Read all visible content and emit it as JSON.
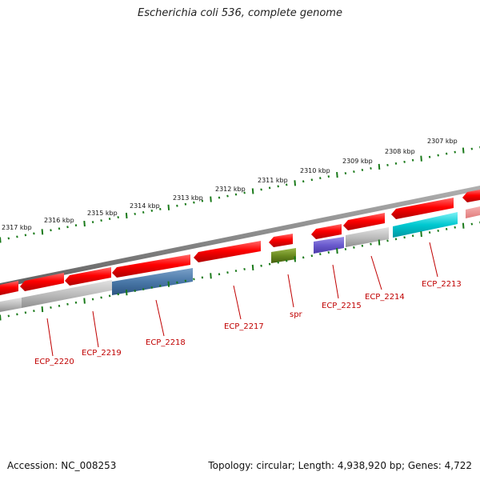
{
  "title": "Escherichia coli 536, complete genome",
  "footer": {
    "accession": "Accession: NC_008253",
    "topology": "Topology: circular; Length: 4,938,920 bp; Genes: 4,722"
  },
  "colors": {
    "cds": "#ff0000",
    "ecp2218": "#4a78a8",
    "spr": "#6a8a20",
    "ecp2215": "#6a5acd",
    "ecp2213": "#00c8d0",
    "grey_feature": "#bdbdbd",
    "tick_green": "#1a7a1a",
    "label_red": "#c00000",
    "backbone": "#8a8a8a"
  },
  "ruler": {
    "unit": "kbp",
    "labels": [
      "2317 kbp",
      "2316 kbp",
      "2315 kbp",
      "2314 kbp",
      "2313 kbp",
      "2312 kbp",
      "2311 kbp",
      "2310 kbp",
      "2309 kbp",
      "2308 kbp",
      "2307 kbp"
    ]
  },
  "genes": [
    "ECP_2220",
    "ECP_2219",
    "ECP_2218",
    "ECP_2217",
    "spr",
    "ECP_2215",
    "ECP_2214",
    "ECP_2213"
  ]
}
